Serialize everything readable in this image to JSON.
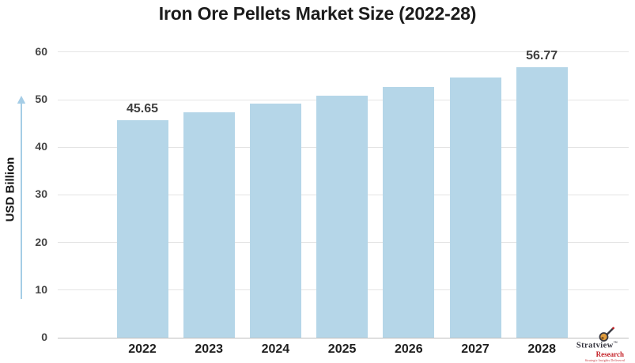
{
  "chart_data": {
    "type": "bar",
    "title": "Iron Ore Pellets Market Size (2022-28)",
    "categories": [
      "2022",
      "2023",
      "2024",
      "2025",
      "2026",
      "2027",
      "2028"
    ],
    "values": [
      45.65,
      47.3,
      49.1,
      50.9,
      52.7,
      54.7,
      56.77
    ],
    "value_labels": [
      {
        "category": "2022",
        "label": "45.65"
      },
      {
        "category": "2028",
        "label": "56.77"
      }
    ],
    "xlabel": "",
    "ylabel": "USD Billion",
    "ylim": [
      0,
      60
    ],
    "yticks": [
      0,
      10,
      20,
      30,
      40,
      50,
      60
    ],
    "grid": true,
    "legend": false,
    "bar_color": "#b5d6e8",
    "gridline_color": "#e4e4e4",
    "axis_line_color": "#bdbdbd",
    "axis_arrow_color": "#a5cde6"
  },
  "branding": {
    "name": "Stratview",
    "trademark": "™",
    "division": "Research",
    "tagline": "Strategic Insights Delivered",
    "icon": "magnifier-icon",
    "name_color": "#33333d",
    "accent_color": "#c42127"
  }
}
